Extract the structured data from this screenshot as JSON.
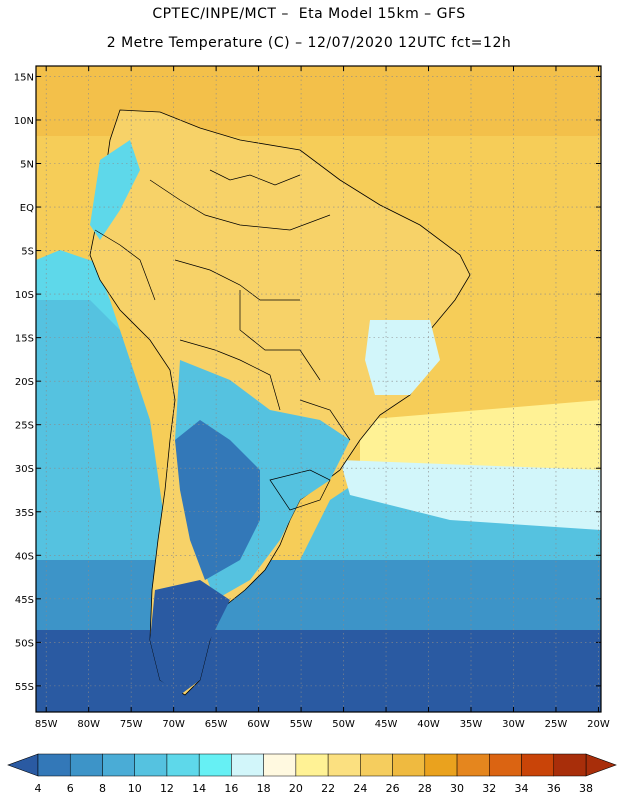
{
  "header": {
    "line1": "CPTEC/INPE/MCT –  Eta Model 15km – GFS",
    "line2": "2 Metre Temperature (C) – 12/07/2020 12UTC fct=12h"
  },
  "axes": {
    "lat_labels": [
      "15N",
      "10N",
      "5N",
      "EQ",
      "5S",
      "10S",
      "15S",
      "20S",
      "25S",
      "30S",
      "35S",
      "40S",
      "45S",
      "50S",
      "55S"
    ],
    "lat_values": [
      15,
      10,
      5,
      0,
      -5,
      -10,
      -15,
      -20,
      -25,
      -30,
      -35,
      -40,
      -45,
      -50,
      -55
    ],
    "lon_labels": [
      "85W",
      "80W",
      "75W",
      "70W",
      "65W",
      "60W",
      "55W",
      "50W",
      "45W",
      "40W",
      "35W",
      "30W",
      "25W",
      "20W"
    ],
    "lon_values": [
      -85,
      -80,
      -75,
      -70,
      -65,
      -60,
      -55,
      -50,
      -45,
      -40,
      -35,
      -30,
      -25,
      -20
    ]
  },
  "colorbar": {
    "labels": [
      "4",
      "6",
      "8",
      "10",
      "12",
      "14",
      "16",
      "18",
      "20",
      "22",
      "24",
      "26",
      "28",
      "30",
      "32",
      "34",
      "36",
      "38"
    ],
    "colors": [
      "#2a5aa2",
      "#3378b8",
      "#3d94c8",
      "#4aacd6",
      "#55c2e0",
      "#5ed8ea",
      "#66f0f4",
      "#d2f6fa",
      "#fff9e0",
      "#fff295",
      "#fbe080",
      "#f5cd5e",
      "#efba40",
      "#eaa21e",
      "#e5861e",
      "#db6412",
      "#c94408",
      "#a82e0a"
    ],
    "left_arrow_color": "#2a5aa2",
    "right_arrow_color": "#a82e0a"
  },
  "map": {
    "ocean_north_color": "#f6cd58",
    "grid_color": "#8a8a8a",
    "border_color": "#000000"
  }
}
